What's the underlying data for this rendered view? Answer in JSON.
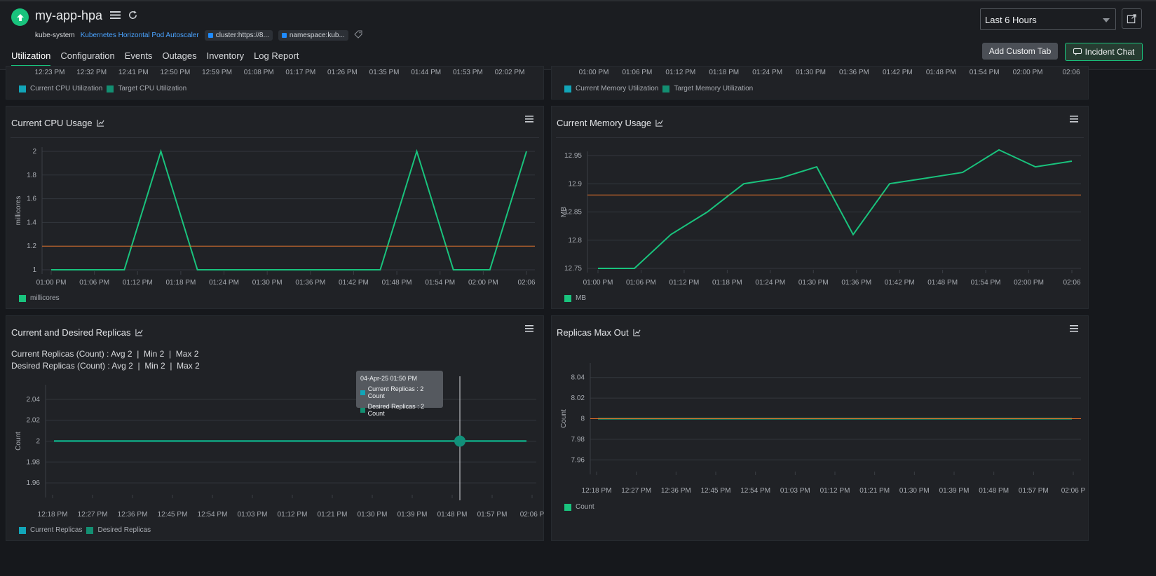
{
  "header": {
    "app_title": "my-app-hpa",
    "namespace_label": "kube-system",
    "type_link": "Kubernetes Horizontal Pod Autoscaler",
    "tags": [
      "cluster:https://8...",
      "namespace:kub..."
    ],
    "time_range": "Last 6 Hours",
    "add_custom_tab": "Add Custom Tab",
    "incident_chat": "Incident Chat",
    "status_color": "#19c37d"
  },
  "tabs": [
    "Utilization",
    "Configuration",
    "Events",
    "Outages",
    "Inventory",
    "Log Report"
  ],
  "top_partial": {
    "left": {
      "x_ticks": [
        "12:23 PM",
        "12:32 PM",
        "12:41 PM",
        "12:50 PM",
        "12:59 PM",
        "01:08 PM",
        "01:17 PM",
        "01:26 PM",
        "01:35 PM",
        "01:44 PM",
        "01:53 PM",
        "02:02 PM"
      ],
      "legend": [
        "Current CPU Utilization",
        "Target CPU Utilization"
      ]
    },
    "right": {
      "x_ticks": [
        "01:00 PM",
        "01:06 PM",
        "01:12 PM",
        "01:18 PM",
        "01:24 PM",
        "01:30 PM",
        "01:36 PM",
        "01:42 PM",
        "01:48 PM",
        "01:54 PM",
        "02:00 PM",
        "02:06"
      ],
      "legend": [
        "Current Memory Utilization",
        "Target Memory Utilization"
      ]
    }
  },
  "panels": {
    "cpu": {
      "title": "Current CPU Usage",
      "legend": "millicores"
    },
    "memory": {
      "title": "Current Memory Usage",
      "legend": "MB"
    },
    "replicas": {
      "title": "Current and Desired Replicas",
      "stat1_label": "Current Replicas (Count) :",
      "stat1_values": "Avg 2  |  Min 2  |  Max 2",
      "stat2_label": "Desired Replicas (Count) :",
      "stat2_values": "Avg 2  |  Min 2  |  Max 2",
      "legend": [
        "Current Replicas",
        "Desired Replicas"
      ],
      "tooltip": {
        "title": "04-Apr-25 01:50 PM",
        "row1": "Current Replicas : 2 Count",
        "row2": "Desired Replicas : 2 Count"
      }
    },
    "maxout": {
      "title": "Replicas Max Out",
      "legend": "Count"
    }
  },
  "chart_data": [
    {
      "type": "line",
      "title": "Current CPU Usage",
      "ylabel": "millicores",
      "ylim": [
        1,
        2
      ],
      "y_ticks": [
        "1",
        "1.2",
        "1.4",
        "1.6",
        "1.8",
        "2"
      ],
      "x_ticks": [
        "01:00 PM",
        "01:06 PM",
        "01:12 PM",
        "01:18 PM",
        "01:24 PM",
        "01:30 PM",
        "01:36 PM",
        "01:42 PM",
        "01:48 PM",
        "01:54 PM",
        "02:00 PM",
        "02:06"
      ],
      "series": [
        {
          "name": "millicores",
          "color": "#19c37d",
          "values": [
            1,
            1,
            1,
            2,
            1,
            1,
            1,
            1,
            1,
            1,
            2,
            1,
            1,
            2
          ]
        },
        {
          "color": "#e0702a",
          "values": [
            1.2,
            1.2
          ]
        }
      ],
      "grid": true,
      "legend": "bottom-left"
    },
    {
      "type": "line",
      "title": "Current Memory Usage",
      "ylabel": "MB",
      "ylim": [
        12.75,
        12.95
      ],
      "y_ticks": [
        "12.75",
        "12.8",
        "12.85",
        "12.9",
        "12.95"
      ],
      "x_ticks": [
        "01:00 PM",
        "01:06 PM",
        "01:12 PM",
        "01:18 PM",
        "01:24 PM",
        "01:30 PM",
        "01:36 PM",
        "01:42 PM",
        "01:48 PM",
        "01:54 PM",
        "02:00 PM",
        "02:06"
      ],
      "series": [
        {
          "name": "MB",
          "color": "#19c37d",
          "values": [
            12.75,
            12.75,
            12.81,
            12.85,
            12.9,
            12.91,
            12.93,
            12.81,
            12.9,
            12.91,
            12.92,
            12.96,
            12.93,
            12.94
          ]
        },
        {
          "color": "#e0702a",
          "values": [
            12.88,
            12.88
          ]
        }
      ],
      "grid": true,
      "legend": "bottom-left"
    },
    {
      "type": "line",
      "title": "Current and Desired Replicas",
      "ylabel": "Count",
      "ylim": [
        1.95,
        2.05
      ],
      "y_ticks": [
        "1.96",
        "1.98",
        "2",
        "2.02",
        "2.04"
      ],
      "x_ticks": [
        "12:18 PM",
        "12:27 PM",
        "12:36 PM",
        "12:45 PM",
        "12:54 PM",
        "01:03 PM",
        "01:12 PM",
        "01:21 PM",
        "01:30 PM",
        "01:39 PM",
        "01:48 PM",
        "01:57 PM",
        "02:06 P"
      ],
      "series": [
        {
          "name": "Current Replicas",
          "color": "#12a5b8",
          "values": [
            2,
            2
          ]
        },
        {
          "name": "Desired Replicas",
          "color": "#138f72",
          "values": [
            2,
            2
          ]
        }
      ],
      "grid": true,
      "legend": "bottom-left"
    },
    {
      "type": "line",
      "title": "Replicas Max Out",
      "ylabel": "Count",
      "ylim": [
        7.95,
        8.05
      ],
      "y_ticks": [
        "7.96",
        "7.98",
        "8",
        "8.02",
        "8.04"
      ],
      "x_ticks": [
        "12:18 PM",
        "12:27 PM",
        "12:36 PM",
        "12:45 PM",
        "12:54 PM",
        "01:03 PM",
        "01:12 PM",
        "01:21 PM",
        "01:30 PM",
        "01:39 PM",
        "01:48 PM",
        "01:57 PM",
        "02:06 P"
      ],
      "series": [
        {
          "name": "Count",
          "color": "#19c37d",
          "values": [
            8,
            8
          ]
        },
        {
          "color": "#e0702a",
          "values": [
            8,
            8
          ]
        }
      ],
      "grid": true,
      "legend": "bottom-left"
    }
  ]
}
